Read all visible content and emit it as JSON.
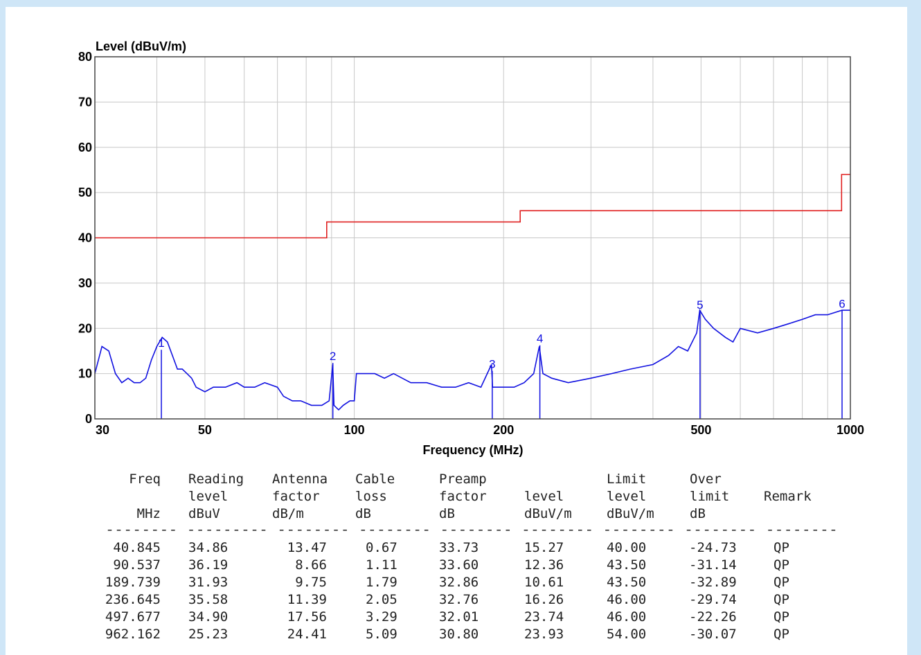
{
  "chart_data": {
    "type": "line",
    "title": "Level (dBuV/m)",
    "x_label": "Frequency (MHz)",
    "log_x": true,
    "grid": true,
    "xlim": [
      30,
      1000
    ],
    "ylim": [
      0,
      80
    ],
    "xticks": [
      30,
      50,
      100,
      200,
      500,
      1000
    ],
    "yticks": [
      0,
      10,
      20,
      30,
      40,
      50,
      60,
      70,
      80
    ],
    "xgrid_minor": [
      40,
      60,
      70,
      80,
      90,
      300,
      400,
      600,
      700,
      800,
      900
    ],
    "series": [
      {
        "color": "#1010e0",
        "x": [
          30,
          31,
          32,
          33,
          34,
          35,
          36,
          37,
          38,
          39,
          40,
          41,
          42,
          43,
          44,
          45,
          46,
          47,
          48,
          50,
          52,
          55,
          58,
          60,
          63,
          66,
          70,
          72,
          75,
          78,
          82,
          86,
          89,
          90.5,
          91,
          93,
          95,
          98,
          100,
          101,
          105,
          110,
          115,
          120,
          130,
          140,
          150,
          160,
          170,
          180,
          189,
          190,
          200,
          210,
          220,
          230,
          236,
          240,
          250,
          270,
          300,
          330,
          360,
          400,
          430,
          450,
          470,
          490,
          497,
          510,
          530,
          560,
          580,
          600,
          650,
          700,
          750,
          800,
          850,
          900,
          962,
          1000
        ],
        "values": [
          10,
          16,
          15,
          10,
          8,
          9,
          8,
          8,
          9,
          13,
          16,
          18,
          17,
          14,
          11,
          11,
          10,
          9,
          7,
          6,
          7,
          7,
          8,
          7,
          7,
          8,
          7,
          5,
          4,
          4,
          3,
          3,
          4,
          12,
          3,
          2,
          3,
          4,
          4,
          10,
          10,
          10,
          9,
          10,
          8,
          8,
          7,
          7,
          8,
          7,
          12,
          7,
          7,
          7,
          8,
          10,
          16,
          10,
          9,
          8,
          9,
          10,
          11,
          12,
          14,
          16,
          15,
          19,
          24,
          22,
          20,
          18,
          17,
          20,
          19,
          20,
          21,
          22,
          23,
          23,
          24,
          24
        ]
      },
      {
        "color": "#e02020",
        "x": [
          30,
          88,
          88,
          216,
          216,
          960,
          960,
          1000
        ],
        "values": [
          40,
          40,
          43.5,
          43.5,
          46,
          46,
          54,
          54
        ]
      }
    ],
    "markers": {
      "color": "#1010e0",
      "x": [
        40.845,
        90.537,
        189.739,
        236.645,
        497.677,
        962.162
      ],
      "values": [
        15.27,
        12.36,
        10.61,
        16.26,
        23.74,
        23.93
      ],
      "labels": [
        "1",
        "2",
        "3",
        "4",
        "5",
        "6"
      ]
    }
  },
  "table": {
    "columns": [
      {
        "line1": "Freq",
        "line3": "MHz"
      },
      {
        "line1": "Reading",
        "line2": "level",
        "line3": "dBuV"
      },
      {
        "line1": "Antenna",
        "line2": "factor",
        "line3": "dB/m"
      },
      {
        "line1": "Cable",
        "line2": "loss",
        "line3": "dB"
      },
      {
        "line1": "Preamp",
        "line2": "factor",
        "line3": "dB"
      },
      {
        "line2": "level",
        "line3": "dBuV/m"
      },
      {
        "line1": "Limit",
        "line2": "level",
        "line3": "dBuV/m"
      },
      {
        "line1": "Over",
        "line2": "limit",
        "line3": "dB"
      },
      {
        "line2": "Remark"
      }
    ],
    "separator": "-------- --------- -------- -------- -------- -------- -------- -------- --------",
    "rows": [
      [
        "40.845",
        "34.86",
        "13.47",
        "0.67",
        "33.73",
        "15.27",
        "40.00",
        "-24.73",
        "QP"
      ],
      [
        "90.537",
        "36.19",
        "8.66",
        "1.11",
        "33.60",
        "12.36",
        "43.50",
        "-31.14",
        "QP"
      ],
      [
        "189.739",
        "31.93",
        "9.75",
        "1.79",
        "32.86",
        "10.61",
        "43.50",
        "-32.89",
        "QP"
      ],
      [
        "236.645",
        "35.58",
        "11.39",
        "2.05",
        "32.76",
        "16.26",
        "46.00",
        "-29.74",
        "QP"
      ],
      [
        "497.677",
        "34.90",
        "17.56",
        "3.29",
        "32.01",
        "23.74",
        "46.00",
        "-22.26",
        "QP"
      ],
      [
        "962.162",
        "25.23",
        "24.41",
        "5.09",
        "30.80",
        "23.93",
        "54.00",
        "-30.07",
        "QP"
      ]
    ]
  }
}
